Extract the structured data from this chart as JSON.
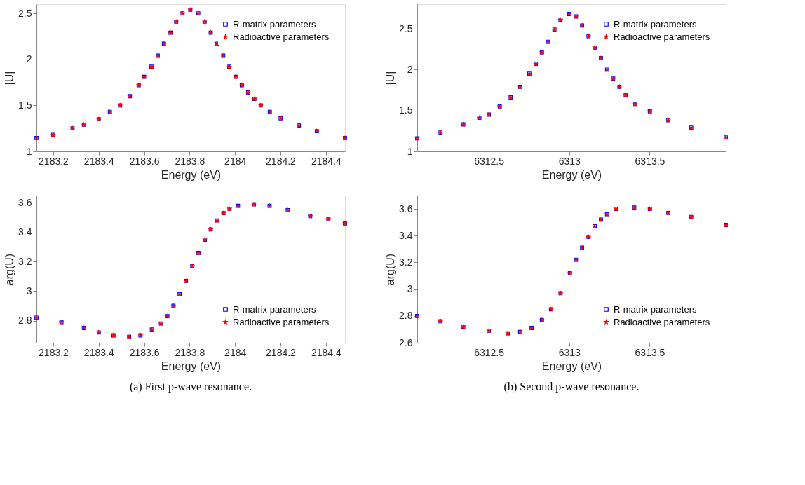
{
  "chart_data": [
    {
      "type": "scatter",
      "xlabel": "Energy (eV)",
      "ylabel": "|U|",
      "xlim": [
        2183.126,
        2184.484
      ],
      "xticks": [
        2183.2,
        2183.4,
        2183.6,
        2183.8,
        2184,
        2184.2,
        2184.4
      ],
      "ylim": [
        1,
        2.6
      ],
      "yticks": [
        1,
        1.5,
        2,
        2.5
      ],
      "grid": false,
      "legend": "top right",
      "x": [
        2183.126,
        2183.2,
        2183.285,
        2183.335,
        2183.4,
        2183.449,
        2183.494,
        2183.537,
        2183.576,
        2183.6,
        2183.632,
        2183.66,
        2183.687,
        2183.716,
        2183.741,
        2183.769,
        2183.803,
        2183.838,
        2183.866,
        2183.893,
        2183.921,
        2183.948,
        2183.975,
        2184.002,
        2184.03,
        2184.058,
        2184.085,
        2184.113,
        2184.153,
        2184.201,
        2184.281,
        2184.36,
        2184.484
      ],
      "series": [
        {
          "name": "R-matrix parameters",
          "color": "#0000ff",
          "marker": "square",
          "values": [
            1.146,
            1.18,
            1.25,
            1.29,
            1.35,
            1.43,
            1.5,
            1.6,
            1.72,
            1.81,
            1.92,
            2.04,
            2.17,
            2.29,
            2.41,
            2.5,
            2.54,
            2.5,
            2.41,
            2.29,
            2.17,
            2.04,
            1.92,
            1.81,
            1.72,
            1.64,
            1.57,
            1.5,
            1.43,
            1.36,
            1.28,
            1.22,
            1.146
          ]
        },
        {
          "name": "Radioactive parameters",
          "color": "#ff0000",
          "marker": "star",
          "values": [
            1.146,
            1.18,
            1.25,
            1.29,
            1.35,
            1.43,
            1.5,
            1.6,
            1.72,
            1.81,
            1.92,
            2.04,
            2.17,
            2.29,
            2.41,
            2.5,
            2.54,
            2.5,
            2.41,
            2.29,
            2.17,
            2.04,
            1.92,
            1.81,
            1.72,
            1.64,
            1.57,
            1.5,
            1.43,
            1.36,
            1.28,
            1.22,
            1.146
          ]
        }
      ]
    },
    {
      "type": "scatter",
      "xlabel": "Energy (eV)",
      "ylabel": "|U|",
      "xlim": [
        6312.055,
        6313.973
      ],
      "xticks": [
        6312.5,
        6313,
        6313.5
      ],
      "ylim": [
        1,
        2.8
      ],
      "yticks": [
        1,
        1.5,
        2,
        2.5
      ],
      "grid": false,
      "legend": "top right",
      "x": [
        6312.055,
        6312.2,
        6312.341,
        6312.441,
        6312.5,
        6312.568,
        6312.636,
        6312.695,
        6312.752,
        6312.792,
        6312.83,
        6312.868,
        6312.908,
        6312.946,
        6313.0,
        6313.042,
        6313.08,
        6313.12,
        6313.158,
        6313.197,
        6313.235,
        6313.273,
        6313.312,
        6313.351,
        6313.411,
        6313.501,
        6313.616,
        6313.758,
        6313.973
      ],
      "series": [
        {
          "name": "R-matrix parameters",
          "color": "#0000ff",
          "marker": "square",
          "values": [
            1.16,
            1.23,
            1.33,
            1.41,
            1.45,
            1.55,
            1.66,
            1.79,
            1.95,
            2.07,
            2.21,
            2.34,
            2.49,
            2.61,
            2.68,
            2.65,
            2.54,
            2.41,
            2.27,
            2.14,
            2.0,
            1.89,
            1.79,
            1.69,
            1.58,
            1.49,
            1.38,
            1.29,
            1.17
          ]
        },
        {
          "name": "Radioactive parameters",
          "color": "#ff0000",
          "marker": "star",
          "values": [
            1.16,
            1.23,
            1.33,
            1.41,
            1.45,
            1.55,
            1.66,
            1.79,
            1.95,
            2.07,
            2.21,
            2.34,
            2.49,
            2.61,
            2.68,
            2.65,
            2.54,
            2.41,
            2.27,
            2.14,
            2.0,
            1.89,
            1.79,
            1.69,
            1.58,
            1.49,
            1.38,
            1.29,
            1.17
          ]
        }
      ]
    },
    {
      "type": "scatter",
      "xlabel": "Energy (eV)",
      "ylabel": "arg(U)",
      "xlim": [
        2183.126,
        2184.484
      ],
      "xticks": [
        2183.2,
        2183.4,
        2183.6,
        2183.8,
        2184,
        2184.2,
        2184.4
      ],
      "ylim": [
        2.65,
        3.65
      ],
      "yticks": [
        2.8,
        3,
        3.2,
        3.4,
        3.6
      ],
      "grid": false,
      "legend": "bottom right",
      "annotations": [
        "(a)  First p-wave resonance."
      ],
      "x": [
        2183.126,
        2183.236,
        2183.335,
        2183.4,
        2183.465,
        2183.534,
        2183.584,
        2183.634,
        2183.674,
        2183.702,
        2183.729,
        2183.756,
        2183.784,
        2183.812,
        2183.839,
        2183.867,
        2183.893,
        2183.921,
        2183.949,
        2183.976,
        2184.013,
        2184.083,
        2184.152,
        2184.232,
        2184.331,
        2184.411,
        2184.484
      ],
      "series": [
        {
          "name": "R-matrix parameters",
          "color": "#0000ff",
          "marker": "square",
          "values": [
            2.82,
            2.79,
            2.75,
            2.72,
            2.7,
            2.69,
            2.7,
            2.74,
            2.78,
            2.83,
            2.9,
            2.98,
            3.07,
            3.17,
            3.26,
            3.35,
            3.42,
            3.48,
            3.53,
            3.56,
            3.58,
            3.59,
            3.58,
            3.55,
            3.51,
            3.49,
            3.46
          ]
        },
        {
          "name": "Radioactive parameters",
          "color": "#ff0000",
          "marker": "star",
          "values": [
            2.82,
            2.79,
            2.75,
            2.72,
            2.7,
            2.69,
            2.7,
            2.74,
            2.78,
            2.83,
            2.9,
            2.98,
            3.07,
            3.17,
            3.26,
            3.35,
            3.42,
            3.48,
            3.53,
            3.56,
            3.58,
            3.59,
            3.58,
            3.55,
            3.51,
            3.49,
            3.46
          ]
        }
      ]
    },
    {
      "type": "scatter",
      "xlabel": "Energy (eV)",
      "ylabel": "arg(U)",
      "xlim": [
        6312.055,
        6313.973
      ],
      "xticks": [
        6312.5,
        6313,
        6313.5
      ],
      "ylim": [
        2.6,
        3.7
      ],
      "yticks": [
        2.6,
        2.8,
        3,
        3.2,
        3.4,
        3.6
      ],
      "grid": false,
      "legend": "bottom right",
      "annotations": [
        "(b)  Second p-wave resonance."
      ],
      "x": [
        6312.055,
        6312.2,
        6312.341,
        6312.5,
        6312.618,
        6312.695,
        6312.766,
        6312.83,
        6312.887,
        6312.946,
        6313.004,
        6313.042,
        6313.08,
        6313.12,
        6313.158,
        6313.197,
        6313.235,
        6313.29,
        6313.404,
        6313.501,
        6313.616,
        6313.758,
        6313.973
      ],
      "series": [
        {
          "name": "R-matrix parameters",
          "color": "#0000ff",
          "marker": "square",
          "values": [
            2.8,
            2.76,
            2.72,
            2.69,
            2.67,
            2.68,
            2.71,
            2.77,
            2.85,
            2.97,
            3.12,
            3.22,
            3.31,
            3.39,
            3.47,
            3.52,
            3.56,
            3.6,
            3.61,
            3.6,
            3.57,
            3.54,
            3.48
          ]
        },
        {
          "name": "Radioactive parameters",
          "color": "#ff0000",
          "marker": "star",
          "values": [
            2.8,
            2.76,
            2.72,
            2.69,
            2.67,
            2.68,
            2.71,
            2.77,
            2.85,
            2.97,
            3.12,
            3.22,
            3.31,
            3.39,
            3.47,
            3.52,
            3.56,
            3.6,
            3.61,
            3.6,
            3.57,
            3.54,
            3.48
          ]
        }
      ]
    }
  ]
}
